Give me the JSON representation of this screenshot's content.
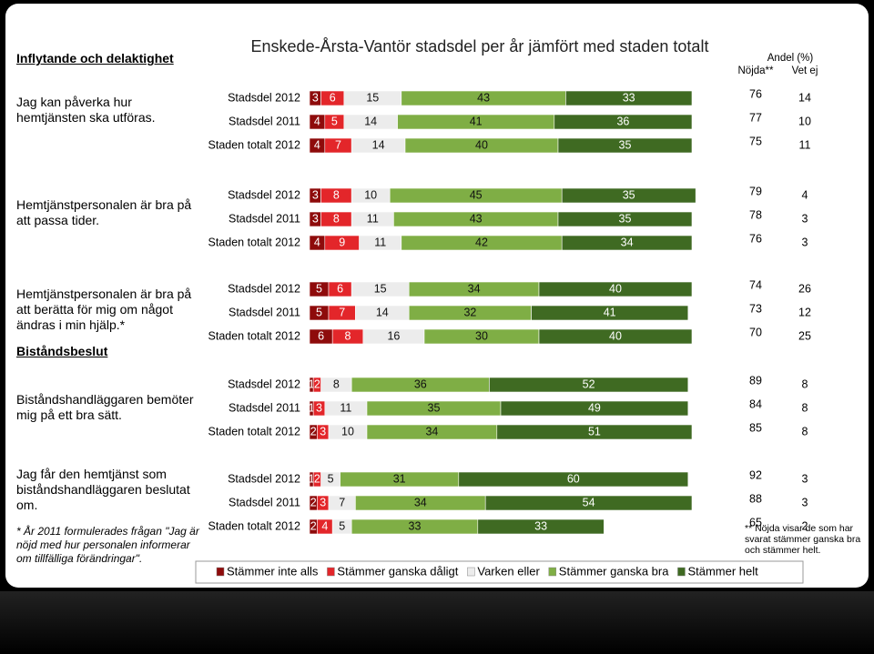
{
  "sections": [
    "Inflytande och delaktighet",
    "Biståndsbeslut"
  ],
  "questions": [
    "Jag kan påverka hur hemtjänsten ska utföras.",
    "Hemtjänstpersonalen är bra på att passa tider.",
    "Hemtjänstpersonalen är bra på att berätta för mig om något ändras i min hjälp.*",
    "Biståndshandläggaren bemöter mig på ett bra sätt.",
    "Jag får den hemtjänst som biståndshandläggaren beslutat om."
  ],
  "footnote": "* År 2011 formulerades frågan \"Jag är nöjd med hur personalen informerar om tillfälliga förändringar\".",
  "chart_data": {
    "type": "bar",
    "orientation": "horizontal",
    "stacked": true,
    "title": "Enskede-Årsta-Vantör stadsdel per år jämfört med staden totalt",
    "header": {
      "unit": "Andel (%)",
      "satisfied": "Nöjda**",
      "unknown": "Vet ej"
    },
    "categories": [
      "Stadsdel 2012",
      "Stadsdel 2011",
      "Staden totalt 2012",
      "Stadsdel 2012",
      "Stadsdel 2011",
      "Staden totalt 2012",
      "Stadsdel 2012",
      "Stadsdel 2011",
      "Staden totalt 2012",
      "Stadsdel 2012",
      "Stadsdel 2011",
      "Staden totalt 2012",
      "Stadsdel 2012",
      "Stadsdel 2011",
      "Staden totalt 2012"
    ],
    "xlim": [
      0,
      100
    ],
    "series": [
      {
        "name": "Stämmer inte alls",
        "color": "#8e0b0b",
        "values": [
          3,
          4,
          4,
          3,
          3,
          4,
          5,
          5,
          6,
          1,
          1,
          2,
          1,
          2,
          2
        ]
      },
      {
        "name": "Stämmer ganska dåligt",
        "color": "#e3262a",
        "values": [
          6,
          5,
          7,
          8,
          8,
          9,
          6,
          7,
          8,
          2,
          3,
          3,
          2,
          3,
          4
        ]
      },
      {
        "name": "Varken eller",
        "color": "#ececec",
        "values": [
          15,
          14,
          14,
          10,
          11,
          11,
          15,
          14,
          16,
          8,
          11,
          10,
          5,
          7,
          5
        ]
      },
      {
        "name": "Stämmer ganska bra",
        "color": "#7fae45",
        "values": [
          43,
          41,
          40,
          45,
          43,
          42,
          34,
          32,
          30,
          36,
          35,
          34,
          31,
          34,
          33
        ]
      },
      {
        "name": "Stämmer helt",
        "color": "#3f6a22",
        "values": [
          33,
          36,
          35,
          35,
          35,
          34,
          40,
          41,
          40,
          52,
          49,
          51,
          60,
          54,
          33
        ]
      }
    ],
    "satisfied": [
      76,
      77,
      75,
      79,
      78,
      76,
      74,
      73,
      70,
      89,
      84,
      85,
      92,
      88,
      65
    ],
    "unknown": [
      14,
      10,
      11,
      4,
      3,
      3,
      26,
      12,
      25,
      8,
      8,
      8,
      3,
      3,
      2
    ],
    "note": "** Nöjda visar de som har svarat stämmer ganska bra och stämmer helt."
  }
}
